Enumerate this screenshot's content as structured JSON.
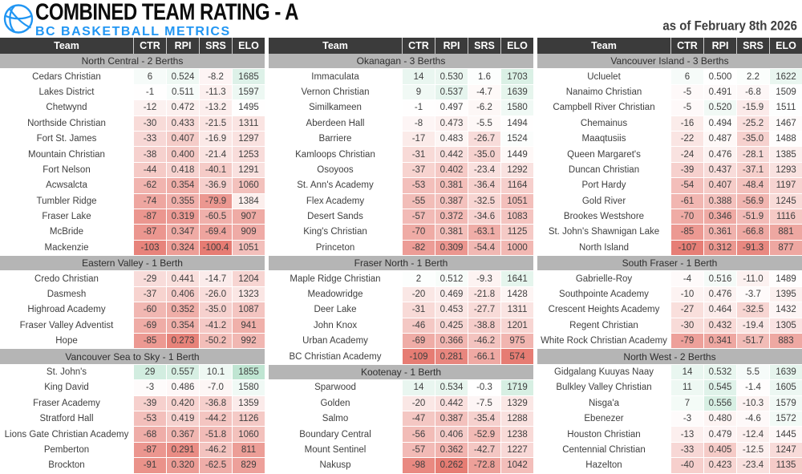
{
  "icons": {
    "logo": "basketball-icon"
  },
  "colors": {
    "accent_blue": "#2196f3",
    "title_text": "#0c0c0c",
    "as_of_text": "#3d3d3d",
    "header_bg": "#3b3b3b",
    "header_text": "#ffffff",
    "section_bg": "#b5b5b5",
    "section_text": "#2e2e2e",
    "body_text": "#3f3f3f",
    "cell_red": "#e67c73",
    "cell_green": "#57bb8a",
    "cell_neutral": "#ffffff"
  },
  "scales": {
    "ctr": {
      "min": -109,
      "mid": 0,
      "max": 109
    },
    "rpi": {
      "min": 0.262,
      "mid": 0.5,
      "max": 0.738
    },
    "srs": {
      "min": -100.4,
      "mid": 0,
      "max": 100.4
    },
    "elo": {
      "min": 574,
      "mid": 1500,
      "max": 2426
    }
  },
  "chart_data": {
    "type": "table",
    "title": "COMBINED TEAM RATING - A",
    "subtitle": "BC BASKETBALL METRICS",
    "as_of": "as of February 8th 2026",
    "columns": [
      "Team",
      "CTR",
      "RPI",
      "SRS",
      "ELO"
    ],
    "boards": [
      {
        "sections": [
          {
            "label": "North Central - 2 Berths",
            "rows": [
              [
                "Cedars Christian",
                "6",
                "0.524",
                "-8.2",
                "1685"
              ],
              [
                "Lakes District",
                "-1",
                "0.511",
                "-11.3",
                "1597"
              ],
              [
                "Chetwynd",
                "-12",
                "0.472",
                "-13.2",
                "1495"
              ],
              [
                "Northside Christian",
                "-30",
                "0.433",
                "-21.5",
                "1311"
              ],
              [
                "Fort St. James",
                "-33",
                "0.407",
                "-16.9",
                "1297"
              ],
              [
                "Mountain Christian",
                "-38",
                "0.400",
                "-21.4",
                "1253"
              ],
              [
                "Fort Nelson",
                "-44",
                "0.418",
                "-40.1",
                "1291"
              ],
              [
                "Acwsalcta",
                "-62",
                "0.354",
                "-36.9",
                "1060"
              ],
              [
                "Tumbler Ridge",
                "-74",
                "0.355",
                "-79.9",
                "1384"
              ],
              [
                "Fraser Lake",
                "-87",
                "0.319",
                "-60.5",
                "907"
              ],
              [
                "McBride",
                "-87",
                "0.347",
                "-69.4",
                "909"
              ],
              [
                "Mackenzie",
                "-103",
                "0.324",
                "-100.4",
                "1051"
              ]
            ]
          },
          {
            "label": "Eastern Valley - 1 Berth",
            "rows": [
              [
                "Credo Christian",
                "-29",
                "0.441",
                "-14.7",
                "1204"
              ],
              [
                "Dasmesh",
                "-37",
                "0.406",
                "-26.0",
                "1323"
              ],
              [
                "Highroad Academy",
                "-60",
                "0.352",
                "-35.0",
                "1087"
              ],
              [
                "Fraser Valley Adventist",
                "-69",
                "0.354",
                "-41.2",
                "941"
              ],
              [
                "Hope",
                "-85",
                "0.273",
                "-50.2",
                "992"
              ]
            ]
          },
          {
            "label": "Vancouver Sea to Sky - 1 Berth",
            "rows": [
              [
                "St. John's",
                "29",
                "0.557",
                "10.1",
                "1855"
              ],
              [
                "King David",
                "-3",
                "0.486",
                "-7.0",
                "1580"
              ],
              [
                "Fraser Academy",
                "-39",
                "0.420",
                "-36.8",
                "1359"
              ],
              [
                "Stratford Hall",
                "-53",
                "0.419",
                "-44.2",
                "1126"
              ],
              [
                "Lions Gate Christian Academy",
                "-68",
                "0.367",
                "-51.8",
                "1060"
              ],
              [
                "Pemberton",
                "-87",
                "0.291",
                "-46.2",
                "811"
              ],
              [
                "Brockton",
                "-91",
                "0.320",
                "-62.5",
                "829"
              ]
            ]
          }
        ]
      },
      {
        "sections": [
          {
            "label": "Okanagan - 3 Berths",
            "rows": [
              [
                "Immaculata",
                "14",
                "0.530",
                "1.6",
                "1703"
              ],
              [
                "Vernon Christian",
                "9",
                "0.537",
                "-4.7",
                "1639"
              ],
              [
                "Similkameen",
                "-1",
                "0.497",
                "-6.2",
                "1580"
              ],
              [
                "Aberdeen Hall",
                "-8",
                "0.473",
                "-5.5",
                "1494"
              ],
              [
                "Barriere",
                "-17",
                "0.483",
                "-26.7",
                "1524"
              ],
              [
                "Kamloops Christian",
                "-31",
                "0.442",
                "-35.0",
                "1449"
              ],
              [
                "Osoyoos",
                "-37",
                "0.402",
                "-23.4",
                "1292"
              ],
              [
                "St. Ann's Academy",
                "-53",
                "0.381",
                "-36.4",
                "1164"
              ],
              [
                "Flex Academy",
                "-55",
                "0.387",
                "-32.5",
                "1051"
              ],
              [
                "Desert Sands",
                "-57",
                "0.372",
                "-34.6",
                "1083"
              ],
              [
                "King's Christian",
                "-70",
                "0.381",
                "-63.1",
                "1125"
              ],
              [
                "Princeton",
                "-82",
                "0.309",
                "-54.4",
                "1000"
              ]
            ]
          },
          {
            "label": "Fraser North - 1 Berth",
            "rows": [
              [
                "Maple Ridge Christian",
                "2",
                "0.512",
                "-9.3",
                "1641"
              ],
              [
                "Meadowridge",
                "-20",
                "0.469",
                "-21.8",
                "1428"
              ],
              [
                "Deer Lake",
                "-31",
                "0.453",
                "-27.7",
                "1311"
              ],
              [
                "John Knox",
                "-46",
                "0.425",
                "-38.8",
                "1201"
              ],
              [
                "Urban Academy",
                "-69",
                "0.366",
                "-46.2",
                "975"
              ],
              [
                "BC Christian Academy",
                "-109",
                "0.281",
                "-66.1",
                "574"
              ]
            ]
          },
          {
            "label": "Kootenay - 1 Berth",
            "rows": [
              [
                "Sparwood",
                "14",
                "0.534",
                "-0.3",
                "1719"
              ],
              [
                "Golden",
                "-20",
                "0.442",
                "-7.5",
                "1329"
              ],
              [
                "Salmo",
                "-47",
                "0.387",
                "-35.4",
                "1288"
              ],
              [
                "Boundary Central",
                "-56",
                "0.406",
                "-52.9",
                "1238"
              ],
              [
                "Mount Sentinel",
                "-57",
                "0.362",
                "-42.7",
                "1227"
              ],
              [
                "Nakusp",
                "-98",
                "0.262",
                "-72.8",
                "1042"
              ]
            ]
          }
        ]
      },
      {
        "sections": [
          {
            "label": "Vancouver Island - 3 Berths",
            "rows": [
              [
                "Ucluelet",
                "6",
                "0.500",
                "2.2",
                "1622"
              ],
              [
                "Nanaimo Christian",
                "-5",
                "0.491",
                "-6.8",
                "1509"
              ],
              [
                "Campbell River Christian",
                "-5",
                "0.520",
                "-15.9",
                "1511"
              ],
              [
                "Chemainus",
                "-16",
                "0.494",
                "-25.2",
                "1467"
              ],
              [
                "Maaqtusiis",
                "-22",
                "0.487",
                "-35.0",
                "1488"
              ],
              [
                "Queen Margaret's",
                "-24",
                "0.476",
                "-28.1",
                "1385"
              ],
              [
                "Duncan Christian",
                "-39",
                "0.437",
                "-37.1",
                "1293"
              ],
              [
                "Port Hardy",
                "-54",
                "0.407",
                "-48.4",
                "1197"
              ],
              [
                "Gold River",
                "-61",
                "0.388",
                "-56.9",
                "1245"
              ],
              [
                "Brookes Westshore",
                "-70",
                "0.346",
                "-51.9",
                "1116"
              ],
              [
                "St. John's Shawnigan Lake",
                "-85",
                "0.361",
                "-66.8",
                "881"
              ],
              [
                "North Island",
                "-107",
                "0.312",
                "-91.3",
                "877"
              ]
            ]
          },
          {
            "label": "South Fraser - 1 Berth",
            "rows": [
              [
                "Gabrielle-Roy",
                "-4",
                "0.516",
                "-11.0",
                "1489"
              ],
              [
                "Southpointe Academy",
                "-10",
                "0.476",
                "-3.7",
                "1395"
              ],
              [
                "Crescent Heights Academy",
                "-27",
                "0.464",
                "-32.5",
                "1432"
              ],
              [
                "Regent Christian",
                "-30",
                "0.432",
                "-19.4",
                "1305"
              ],
              [
                "White Rock Christian Academy",
                "-79",
                "0.341",
                "-51.7",
                "883"
              ]
            ]
          },
          {
            "label": "North West - 2 Berths",
            "rows": [
              [
                "Gidgalang Kuuyas Naay",
                "14",
                "0.532",
                "5.5",
                "1639"
              ],
              [
                "Bulkley Valley Christian",
                "11",
                "0.545",
                "-1.4",
                "1605"
              ],
              [
                "Nisga'a",
                "7",
                "0.556",
                "-10.3",
                "1579"
              ],
              [
                "Ebenezer",
                "-3",
                "0.480",
                "-4.6",
                "1572"
              ],
              [
                "Houston Christian",
                "-13",
                "0.479",
                "-12.4",
                "1445"
              ],
              [
                "Centennial Christian",
                "-33",
                "0.405",
                "-12.5",
                "1247"
              ],
              [
                "Hazelton",
                "-40",
                "0.423",
                "-23.4",
                "1135"
              ]
            ]
          }
        ]
      }
    ]
  }
}
